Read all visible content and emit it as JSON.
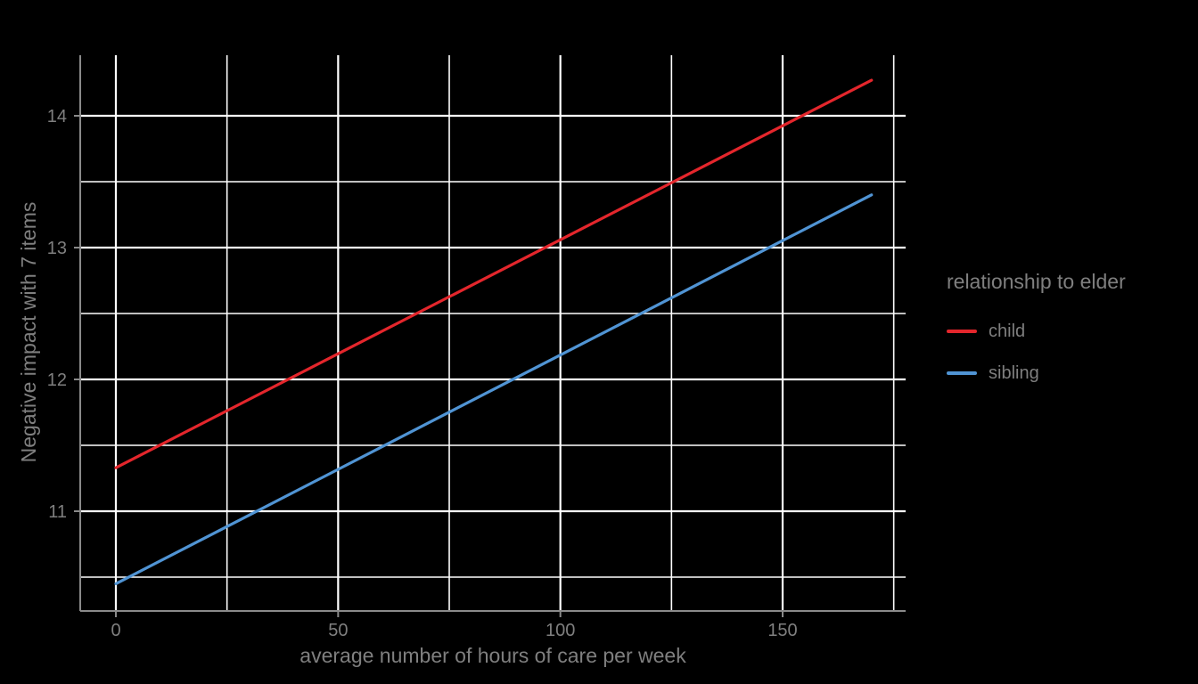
{
  "chart_data": {
    "type": "line",
    "title": "",
    "xlabel": "average number of hours of care per week",
    "ylabel": "Negative impact with 7 items",
    "legend_title": "relationship to elder",
    "legend_position": "right",
    "grid": true,
    "xlim": [
      -8,
      178
    ],
    "ylim": [
      10.24,
      14.46
    ],
    "x_major_ticks": [
      0,
      50,
      100,
      150
    ],
    "x_minor_gridlines": [
      25,
      75,
      125,
      175
    ],
    "y_major_ticks": [
      11,
      12,
      13,
      14
    ],
    "y_minor_gridlines": [
      10.5,
      11.5,
      12.5,
      13.5
    ],
    "series": [
      {
        "name": "child",
        "color": "#e4262c",
        "points": [
          [
            0,
            11.33
          ],
          [
            170,
            14.27
          ]
        ]
      },
      {
        "name": "sibling",
        "color": "#5094d4",
        "points": [
          [
            0,
            10.45
          ],
          [
            170,
            13.4
          ]
        ]
      }
    ]
  },
  "colors": {
    "background": "#000000",
    "gridline_major": "#ffffff",
    "gridline_minor": "#ffffff",
    "axis_line": "#8a8a8a",
    "text": "#7f7f7f"
  }
}
